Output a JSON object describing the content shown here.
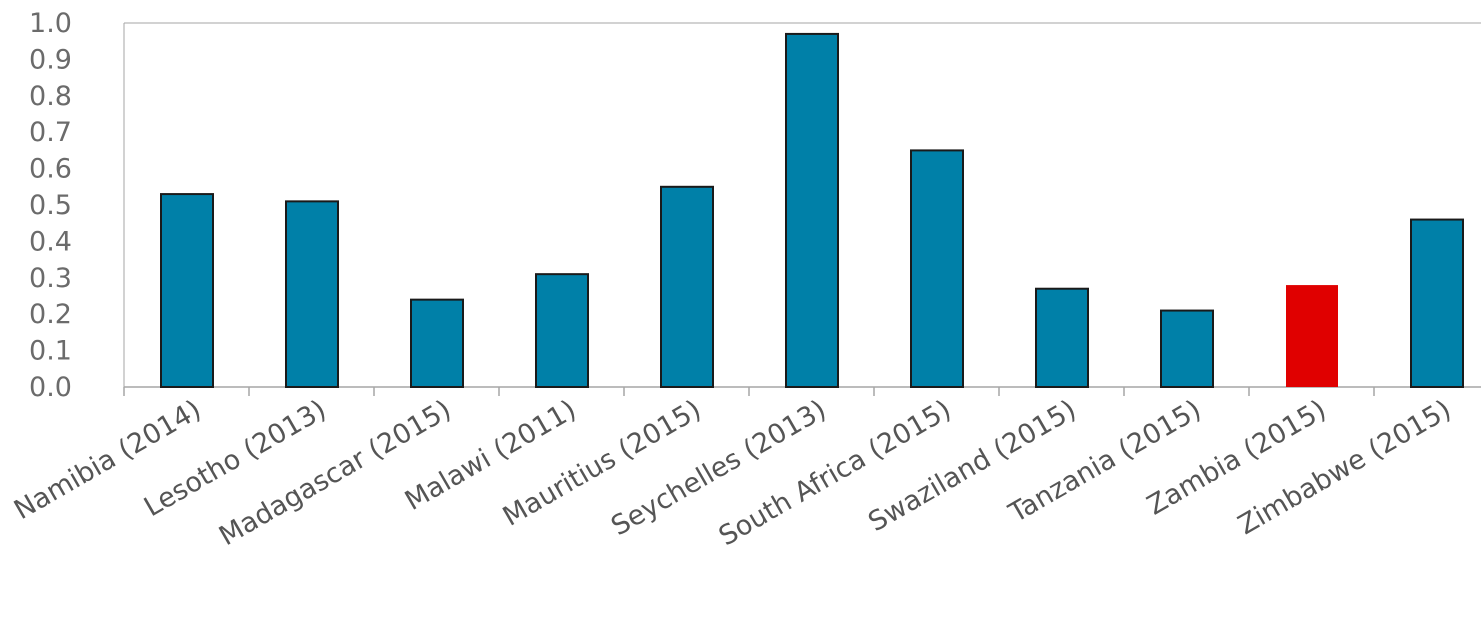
{
  "chart_data": {
    "type": "bar",
    "title": "",
    "xlabel": "",
    "ylabel": "",
    "ylim": [
      0.0,
      1.0
    ],
    "yticks": [
      "0.0",
      "0.1",
      "0.2",
      "0.3",
      "0.4",
      "0.5",
      "0.6",
      "0.7",
      "0.8",
      "0.9",
      "1.0"
    ],
    "grid": false,
    "categories": [
      "Namibia (2014)",
      "Lesotho (2013)",
      "Madagascar (2015)",
      "Malawi (2011)",
      "Mauritius (2015)",
      "Seychelles (2013)",
      "South Africa (2015)",
      "Swaziland (2015)",
      "Tanzania (2015)",
      "Zambia (2015)",
      "Zimbabwe (2015)"
    ],
    "values": [
      0.53,
      0.51,
      0.24,
      0.31,
      0.55,
      0.97,
      0.65,
      0.27,
      0.21,
      0.28,
      0.46
    ],
    "bar_color": "#0080A8",
    "highlight_color": "#E00000",
    "highlight_index": 9
  }
}
